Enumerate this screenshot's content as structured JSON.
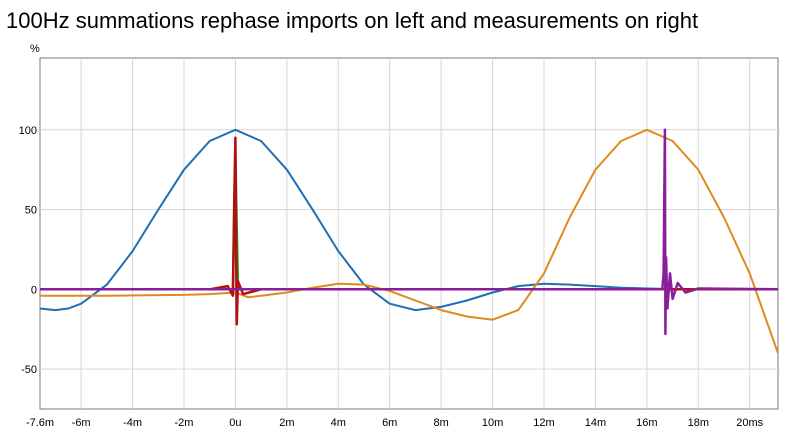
{
  "chart_data": {
    "type": "line",
    "title": "100Hz summations rephase imports on left and measurements on right",
    "ylabel": "%",
    "xlabel": "",
    "xlim": [
      -7.6,
      21.1
    ],
    "ylim": [
      -75,
      145
    ],
    "x_ticks": [
      {
        "v": -7.6,
        "label": "-7.6m"
      },
      {
        "v": -6,
        "label": "-6m"
      },
      {
        "v": -4,
        "label": "-4m"
      },
      {
        "v": -2,
        "label": "-2m"
      },
      {
        "v": 0,
        "label": "0u"
      },
      {
        "v": 2,
        "label": "2m"
      },
      {
        "v": 4,
        "label": "4m"
      },
      {
        "v": 6,
        "label": "6m"
      },
      {
        "v": 8,
        "label": "8m"
      },
      {
        "v": 10,
        "label": "10m"
      },
      {
        "v": 12,
        "label": "12m"
      },
      {
        "v": 14,
        "label": "14m"
      },
      {
        "v": 16,
        "label": "16m"
      },
      {
        "v": 18,
        "label": "18m"
      },
      {
        "v": 20,
        "label": "20ms"
      }
    ],
    "y_ticks": [
      {
        "v": 100,
        "label": "100"
      },
      {
        "v": 50,
        "label": "50"
      },
      {
        "v": 0,
        "label": "0"
      },
      {
        "v": -50,
        "label": "-50"
      }
    ],
    "grid": true,
    "series": [
      {
        "color": "#1f6fb4",
        "x": [
          -7.6,
          -7,
          -6.5,
          -6,
          -5,
          -4,
          -3,
          -2,
          -1,
          0,
          1,
          2,
          3,
          4,
          5,
          6,
          7,
          8,
          9,
          10,
          11,
          12,
          13,
          14,
          15,
          16,
          17,
          18,
          19,
          20,
          21.1
        ],
        "y": [
          -12,
          -13,
          -12,
          -9,
          3,
          24,
          50,
          75,
          93,
          100,
          93,
          75,
          50,
          24,
          3,
          -9,
          -13,
          -11,
          -7,
          -2,
          2,
          3.5,
          3,
          2,
          1,
          0.5,
          0.2,
          0,
          0,
          0,
          0
        ]
      },
      {
        "color": "#e08a1e",
        "x": [
          -7.6,
          -5,
          -2,
          -1,
          0,
          0.5,
          1,
          2,
          3,
          4,
          5,
          6,
          7,
          8,
          9,
          10,
          11,
          12,
          13,
          14,
          15,
          16,
          17,
          18,
          19,
          20,
          21.1
        ],
        "y": [
          -4,
          -4,
          -3.5,
          -3,
          -2,
          -5,
          -4,
          -2,
          1,
          3.5,
          3,
          -1,
          -7,
          -13,
          -17,
          -19,
          -13,
          10,
          45,
          75,
          93,
          100,
          93,
          75,
          45,
          10,
          -40
        ]
      },
      {
        "color": "#1e9a1e",
        "x": [
          -7.6,
          -0.1,
          -0.05,
          0,
          0.05,
          0.1,
          21.1
        ],
        "y": [
          0,
          0,
          40,
          85,
          40,
          0,
          0
        ]
      },
      {
        "color": "#b01010",
        "x": [
          -7.6,
          -1,
          -0.3,
          -0.1,
          -0.05,
          0,
          0.05,
          0.1,
          0.3,
          1,
          21.1
        ],
        "y": [
          0,
          0,
          2,
          -4,
          50,
          95,
          -22,
          5,
          -3,
          0,
          0
        ]
      },
      {
        "color": "#8a1e9a",
        "x": [
          -7.6,
          16.6,
          16.65,
          16.7,
          16.72,
          16.75,
          16.8,
          16.9,
          17,
          17.2,
          17.5,
          18,
          21.1
        ],
        "y": [
          0,
          0,
          10,
          100,
          -28,
          20,
          -12,
          10,
          -6,
          4,
          -2,
          0.5,
          0
        ]
      }
    ]
  }
}
